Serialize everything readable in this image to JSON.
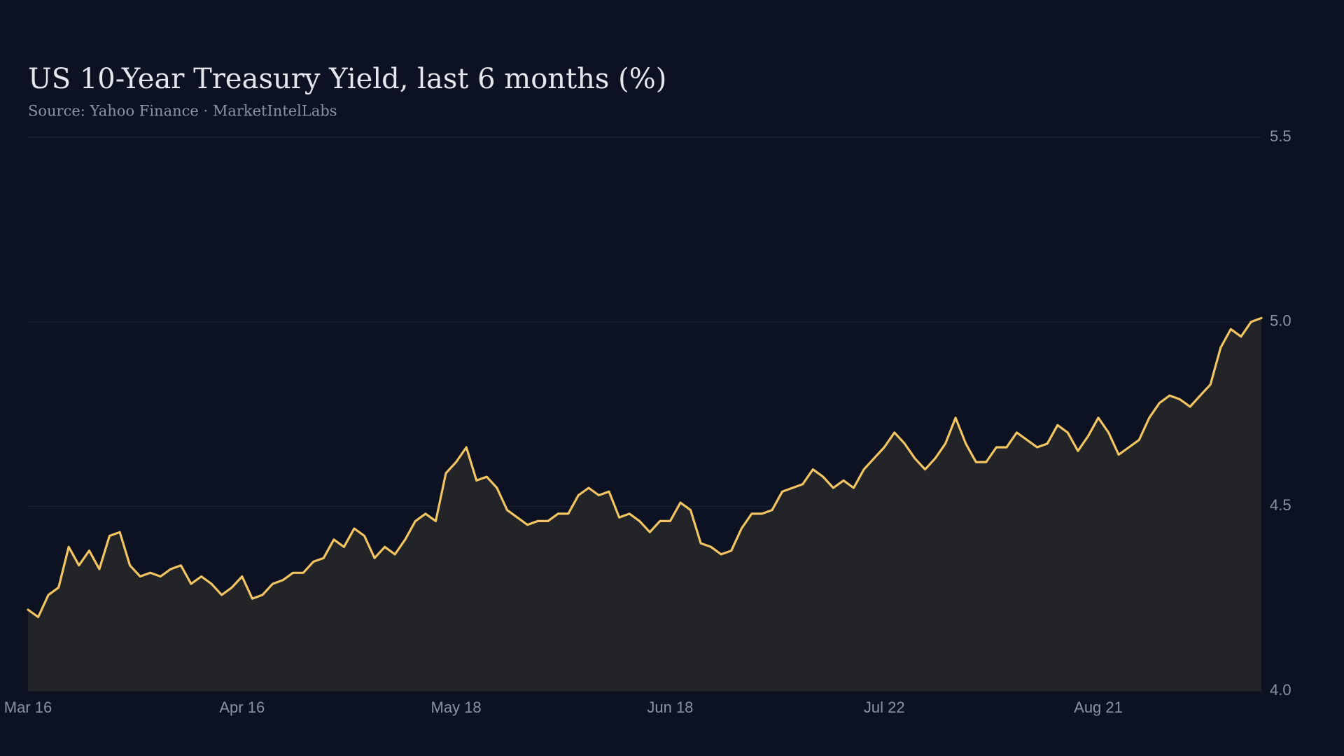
{
  "chart_data": {
    "type": "area",
    "title": "US 10-Year Treasury Yield, last 6 months (%)",
    "subtitle": "Source: Yahoo Finance · MarketIntelLabs",
    "categories": [
      "Mar 16",
      null,
      null,
      null,
      null,
      null,
      null,
      null,
      null,
      null,
      null,
      null,
      null,
      null,
      null,
      null,
      null,
      null,
      null,
      null,
      null,
      "Apr 16",
      null,
      null,
      null,
      null,
      null,
      null,
      null,
      null,
      null,
      null,
      null,
      null,
      null,
      null,
      null,
      null,
      null,
      null,
      null,
      null,
      "May 18",
      null,
      null,
      null,
      null,
      null,
      null,
      null,
      null,
      null,
      null,
      null,
      null,
      null,
      null,
      null,
      null,
      null,
      null,
      null,
      null,
      "Jun 18",
      null,
      null,
      null,
      null,
      null,
      null,
      null,
      null,
      null,
      null,
      null,
      null,
      null,
      null,
      null,
      null,
      null,
      null,
      null,
      null,
      "Jul 22",
      null,
      null,
      null,
      null,
      null,
      null,
      null,
      null,
      null,
      null,
      null,
      null,
      null,
      null,
      null,
      null,
      null,
      null,
      null,
      null,
      "Aug 21",
      null,
      null,
      null,
      null,
      null,
      null,
      null,
      null,
      null,
      null,
      null,
      null,
      null,
      null,
      null,
      null
    ],
    "values": [
      4.22,
      4.2,
      4.26,
      4.28,
      4.39,
      4.34,
      4.38,
      4.33,
      4.42,
      4.43,
      4.34,
      4.31,
      4.32,
      4.31,
      4.33,
      4.34,
      4.29,
      4.31,
      4.29,
      4.26,
      4.28,
      4.31,
      4.25,
      4.26,
      4.29,
      4.3,
      4.32,
      4.32,
      4.35,
      4.36,
      4.41,
      4.39,
      4.44,
      4.42,
      4.36,
      4.39,
      4.37,
      4.41,
      4.46,
      4.48,
      4.46,
      4.59,
      4.62,
      4.66,
      4.57,
      4.58,
      4.55,
      4.49,
      4.47,
      4.45,
      4.46,
      4.46,
      4.48,
      4.48,
      4.53,
      4.55,
      4.53,
      4.54,
      4.47,
      4.48,
      4.46,
      4.43,
      4.46,
      4.46,
      4.51,
      4.49,
      4.4,
      4.39,
      4.37,
      4.38,
      4.44,
      4.48,
      4.48,
      4.49,
      4.54,
      4.55,
      4.56,
      4.6,
      4.58,
      4.55,
      4.57,
      4.55,
      4.6,
      4.63,
      4.66,
      4.7,
      4.67,
      4.63,
      4.6,
      4.63,
      4.67,
      4.74,
      4.67,
      4.62,
      4.62,
      4.66,
      4.66,
      4.7,
      4.68,
      4.66,
      4.67,
      4.72,
      4.7,
      4.65,
      4.69,
      4.74,
      4.7,
      4.64,
      4.66,
      4.68,
      4.74,
      4.78,
      4.8,
      4.79,
      4.77,
      4.8,
      4.83,
      4.93,
      4.98,
      4.96,
      5.0,
      5.01
    ],
    "color": "#f2c462",
    "area_color": "#222428",
    "ylim": [
      4,
      5.5
    ],
    "yticks": [
      {
        "value": 4,
        "label": "4.0"
      },
      4.5,
      {
        "value": 5,
        "label": "5.0"
      },
      5.5
    ],
    "grid": true
  }
}
